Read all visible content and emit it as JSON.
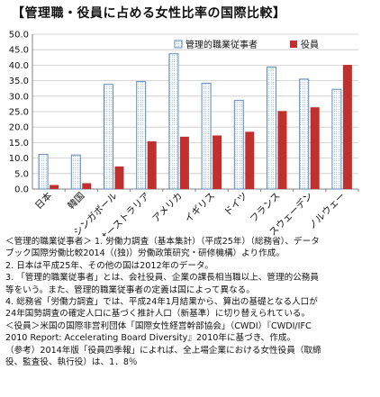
{
  "chart_data": {
    "type": "bar",
    "title": "【管理職・役員に占める女性比率の国際比較】",
    "categories": [
      "日本",
      "韓国",
      "シンガポール",
      "オーストラリア",
      "アメリカ",
      "イギリス",
      "ドイツ",
      "フランス",
      "スウェーデン",
      "ノルウェー"
    ],
    "series": [
      {
        "name": "管理的職業従事者",
        "values": [
          11.2,
          11.0,
          33.8,
          34.7,
          43.7,
          34.2,
          28.6,
          39.4,
          35.5,
          32.2
        ],
        "color": "#ffffff",
        "stroke": "#5b8cc2",
        "pattern": "dotted"
      },
      {
        "name": "役員",
        "values": [
          1.3,
          1.9,
          7.3,
          15.4,
          16.9,
          17.3,
          18.5,
          25.2,
          26.4,
          40.1
        ],
        "color": "#c0302f"
      }
    ],
    "ylim": [
      0,
      50
    ],
    "yticks": [
      "0.0",
      "5.0",
      "10.0",
      "15.0",
      "20.0",
      "25.0",
      "30.0",
      "35.0",
      "40.0",
      "45.0",
      "50.0"
    ],
    "xlabel": "",
    "ylabel": "",
    "grid": true,
    "legend_position": "top-right"
  },
  "notes": [
    "＜管理的職業従事者＞ 1. 労働力調査（基本集計）（平成25年）（総務省）、データ",
    "ブック国際労働比較2014（(独)）労働政策研究・研修機構）より作成。",
    "2. 日本は平成25年、その他の国は2012年のデータ。",
    "3. 「管理的職業従事者」とは、会社役員、企業の課長相当職以上、管理的公務員",
    "等をいう。また、管理的職業従事者の定義は国によって異なる。",
    "4. 総務省「労働力調査」では、平成24年1月結果から、算出の基礎となる人口が",
    "24年国勢調査の確定人口に基づく推計人口（新基準）に切り替えられている。",
    "＜役員＞米国の国際非営利団体「国際女性経営幹部協会」（CWDI）『CWDI/IFC",
    "2010 Report: Accelerating Board Diversity』2010年に基づき、作成。",
    "（参考）2014年版「役員四季報」によれば、全上場企業における女性役員（取締",
    "役、監査役、執行役）は、1．8％"
  ]
}
